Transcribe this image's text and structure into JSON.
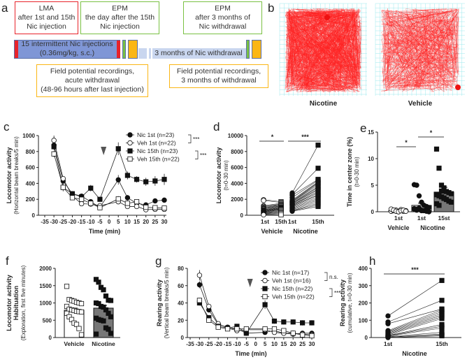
{
  "panel_labels": {
    "a": "a",
    "b": "b",
    "c": "c",
    "d": "d",
    "e": "e",
    "f": "f",
    "g": "g",
    "h": "h"
  },
  "panel_a": {
    "box_lma": [
      "LMA",
      "after 1st and 15th",
      "Nic injection"
    ],
    "box_epm1": [
      "EPM",
      "the day after the 15th",
      "Nic injection"
    ],
    "box_epm2": [
      "EPM",
      "after 3 months of",
      "Nic withdrawal"
    ],
    "bar_injections": [
      "15 intermittent Nic injections",
      "(0.36mg/kg, s.c.)"
    ],
    "bar_withdrawal": "3 months of Nic withdrawal",
    "box_field1": [
      "Field potential recordings,",
      "acute withdrawal",
      "(48-96 hours after last injection)"
    ],
    "box_field2": [
      "Field potential recordings,",
      "3 months of withdrawal"
    ],
    "colors": {
      "lma": "#e8232a",
      "epm": "#7ac143",
      "field": "#fbb614",
      "injection_bar": "#7f96d6",
      "withdrawal_bar": "#c9d6ef"
    }
  },
  "panel_b": {
    "labels": [
      "Nicotine",
      "Vehicle"
    ],
    "track_color": "#ff2020",
    "grid_color": "#9be8ee"
  },
  "chart_data": [
    {
      "id": "c",
      "type": "line",
      "ylabel": [
        "Locomotor activity",
        "(Horizontal beam breaks/5 min)"
      ],
      "xlabel": "Time (min)",
      "xlim": [
        -35,
        30
      ],
      "ylim": [
        0,
        1000
      ],
      "xticks": [
        -35,
        -30,
        -25,
        -20,
        -15,
        -10,
        -5,
        0,
        5,
        10,
        15,
        20,
        25,
        30
      ],
      "yticks": [
        0,
        200,
        400,
        600,
        800,
        1000
      ],
      "x": [
        -30,
        -25,
        -20,
        -15,
        -10,
        -5,
        5,
        10,
        15,
        20,
        25,
        30
      ],
      "series": [
        {
          "name": "Nic 1st (n=23)",
          "marker": "filled-circle",
          "values": [
            880,
            430,
            270,
            240,
            170,
            100,
            445,
            220,
            150,
            130,
            180,
            190
          ],
          "err": [
            40,
            30,
            25,
            20,
            20,
            15,
            60,
            35,
            25,
            25,
            25,
            30
          ]
        },
        {
          "name": "Veh 1st (n=22)",
          "marker": "open-circle",
          "values": [
            940,
            460,
            240,
            145,
            140,
            120,
            170,
            110,
            110,
            70,
            75,
            75
          ],
          "err": [
            60,
            30,
            25,
            20,
            20,
            15,
            30,
            20,
            25,
            15,
            15,
            15
          ]
        },
        {
          "name": "Nic 15th (n=23)",
          "marker": "filled-square",
          "values": [
            860,
            350,
            270,
            230,
            340,
            200,
            835,
            500,
            450,
            420,
            430,
            450
          ],
          "err": [
            40,
            30,
            25,
            25,
            40,
            20,
            80,
            50,
            40,
            50,
            60,
            70
          ]
        },
        {
          "name": "Veh 15th (n=22)",
          "marker": "open-square",
          "values": [
            770,
            350,
            220,
            200,
            150,
            95,
            205,
            150,
            170,
            100,
            95,
            90
          ],
          "err": [
            40,
            50,
            30,
            25,
            25,
            15,
            35,
            30,
            25,
            20,
            15,
            15
          ]
        }
      ],
      "significance": [
        "***",
        "***"
      ],
      "annotation": "arrow at injection"
    },
    {
      "id": "d",
      "type": "scatter-paired",
      "ylabel": [
        "Locomotor activity",
        "(t=0-30 min)"
      ],
      "ylim": [
        0,
        10000
      ],
      "yticks": [
        0,
        2000,
        4000,
        6000,
        8000,
        10000
      ],
      "categories": [
        "1st",
        "15th",
        "1st",
        "15th"
      ],
      "groups": [
        "Vehicle",
        "Nicotine"
      ],
      "significance": [
        "*",
        "***"
      ],
      "vehicle_pairs": [
        [
          1950,
          1700
        ],
        [
          1850,
          1600
        ],
        [
          1200,
          1500
        ],
        [
          1100,
          1400
        ],
        [
          1000,
          1350
        ],
        [
          900,
          1300
        ],
        [
          850,
          1200
        ],
        [
          800,
          1150
        ],
        [
          700,
          1100
        ],
        [
          650,
          1000
        ],
        [
          600,
          950
        ],
        [
          550,
          900
        ],
        [
          500,
          850
        ],
        [
          450,
          800
        ],
        [
          400,
          750
        ],
        [
          350,
          700
        ],
        [
          300,
          600
        ],
        [
          250,
          500
        ],
        [
          200,
          400
        ],
        [
          150,
          300
        ],
        [
          100,
          200
        ],
        [
          50,
          50
        ]
      ],
      "nicotine_pairs": [
        [
          2800,
          8800
        ],
        [
          2600,
          5900
        ],
        [
          2500,
          4500
        ],
        [
          2200,
          4400
        ],
        [
          1900,
          4200
        ],
        [
          1800,
          4100
        ],
        [
          1700,
          4000
        ],
        [
          1700,
          3800
        ],
        [
          1600,
          3600
        ],
        [
          1500,
          3500
        ],
        [
          1500,
          3300
        ],
        [
          1400,
          3200
        ],
        [
          1300,
          3000
        ],
        [
          1300,
          2800
        ],
        [
          1200,
          2600
        ],
        [
          1100,
          2500
        ],
        [
          1000,
          2300
        ],
        [
          900,
          2100
        ],
        [
          800,
          1900
        ],
        [
          700,
          1700
        ],
        [
          600,
          1500
        ],
        [
          550,
          1300
        ],
        [
          500,
          1100
        ]
      ]
    },
    {
      "id": "e",
      "type": "bar-scatter",
      "ylabel": [
        "Time in center zone (%)",
        "(t=0-30 min)"
      ],
      "ylim": [
        0,
        15
      ],
      "yticks": [
        0,
        5,
        10,
        15
      ],
      "categories": [
        "1st",
        "1st",
        "15st"
      ],
      "groups": [
        "Vehicle",
        "Nicotine"
      ],
      "means": [
        0.2,
        1.2,
        3.7
      ],
      "sem": [
        0.1,
        0.4,
        0.9
      ],
      "points": [
        [
          0.1,
          0.2,
          0.3,
          0.0,
          0.4,
          0.1,
          0.2,
          0.5,
          0.3,
          0.1,
          0.0,
          0.2,
          0.3,
          0.1
        ],
        [
          5.1,
          5.0,
          3.0,
          1.8,
          1.2,
          1.0,
          0.8,
          0.6,
          0.5,
          0.4,
          0.3,
          0.2,
          0.1,
          0.0,
          0.5,
          0.3,
          0.7,
          0.2
        ],
        [
          11.8,
          8.2,
          5.0,
          4.5,
          3.8,
          3.6,
          3.4,
          3.2,
          3.0,
          2.8,
          2.5,
          2.3,
          2.0,
          1.8,
          1.5,
          1.2,
          3.9,
          2.6
        ]
      ],
      "significance": [
        "*",
        "*"
      ]
    },
    {
      "id": "f",
      "type": "bar-scatter",
      "ylabel": [
        "Locomotor activity",
        "Habituation",
        "(Exploration, first five minutes)"
      ],
      "ylim": [
        0,
        2000
      ],
      "yticks": [
        0,
        500,
        1000,
        1500,
        2000
      ],
      "categories": [
        "Vehicle",
        "Nicotine"
      ],
      "means": [
        790,
        850
      ],
      "sem": [
        60,
        80
      ],
      "points": [
        [
          1480,
          1100,
          1070,
          1050,
          1020,
          1000,
          980,
          900,
          820,
          800,
          780,
          760,
          750,
          740,
          700,
          600,
          520,
          420,
          380,
          260,
          80
        ],
        [
          1680,
          1600,
          1450,
          1380,
          1200,
          1080,
          1070,
          1000,
          980,
          900,
          880,
          800,
          700,
          600,
          560,
          520,
          500,
          480,
          280,
          240,
          120,
          100
        ]
      ]
    },
    {
      "id": "g",
      "type": "line",
      "ylabel": [
        "Rearing activity",
        "(Vertical beam breaks/5 min)"
      ],
      "xlabel": "Time (min)",
      "xlim": [
        -35,
        30
      ],
      "ylim": [
        0,
        80
      ],
      "xticks": [
        -35,
        -30,
        -25,
        -20,
        -15,
        -10,
        -5,
        0,
        5,
        10,
        15,
        20,
        25,
        30
      ],
      "yticks": [
        0,
        20,
        40,
        60,
        80
      ],
      "x": [
        -30,
        -25,
        -20,
        -15,
        -10,
        -5,
        5,
        10,
        15,
        20,
        25,
        30
      ],
      "series": [
        {
          "name": "Nic 1st (n=17)",
          "marker": "filled-circle",
          "values": [
            61,
            32,
            15,
            12,
            10,
            5,
            6,
            8,
            5,
            4,
            5,
            5
          ],
          "err": [
            4,
            3,
            2,
            2,
            2,
            1,
            1,
            1,
            1,
            1,
            1,
            1
          ]
        },
        {
          "name": "Veh 1st (n=16)",
          "marker": "open-circle",
          "values": [
            72,
            36,
            16,
            11,
            8,
            9,
            9,
            6,
            5,
            5,
            4,
            3
          ],
          "err": [
            6,
            3,
            2,
            2,
            2,
            2,
            2,
            1,
            1,
            1,
            1,
            1
          ]
        },
        {
          "name": "Nic 15th (n=22)",
          "marker": "filled-square",
          "values": [
            40,
            23,
            13,
            11,
            13,
            5,
            38,
            19,
            18,
            18,
            17,
            17
          ],
          "err": [
            3,
            2,
            2,
            2,
            2,
            1,
            5,
            3,
            3,
            3,
            3,
            3
          ]
        },
        {
          "name": "Veh 15th (n=22)",
          "marker": "open-square",
          "values": [
            43,
            20,
            12,
            10,
            10,
            10,
            10,
            10,
            8,
            5,
            3,
            2
          ],
          "err": [
            3,
            2,
            2,
            2,
            2,
            2,
            2,
            2,
            2,
            1,
            1,
            1
          ]
        }
      ],
      "significance": [
        "n.s.",
        "***"
      ],
      "annotation": "arrow at injection"
    },
    {
      "id": "h",
      "type": "scatter-paired",
      "ylabel": [
        "Rearing activity",
        "(cumulative, t=0-30 min)"
      ],
      "ylim": [
        0,
        400
      ],
      "yticks": [
        0,
        100,
        200,
        300,
        400
      ],
      "categories": [
        "1st",
        "15th"
      ],
      "groups": [
        "Nicotine"
      ],
      "significance": [
        "***"
      ],
      "pairs": [
        [
          125,
          330
        ],
        [
          90,
          215
        ],
        [
          80,
          165
        ],
        [
          40,
          160
        ],
        [
          35,
          150
        ],
        [
          30,
          140
        ],
        [
          25,
          130
        ],
        [
          20,
          120
        ],
        [
          15,
          110
        ],
        [
          12,
          75
        ],
        [
          10,
          65
        ],
        [
          8,
          55
        ],
        [
          5,
          30
        ],
        [
          3,
          20
        ],
        [
          2,
          15
        ],
        [
          0,
          10
        ]
      ]
    }
  ]
}
